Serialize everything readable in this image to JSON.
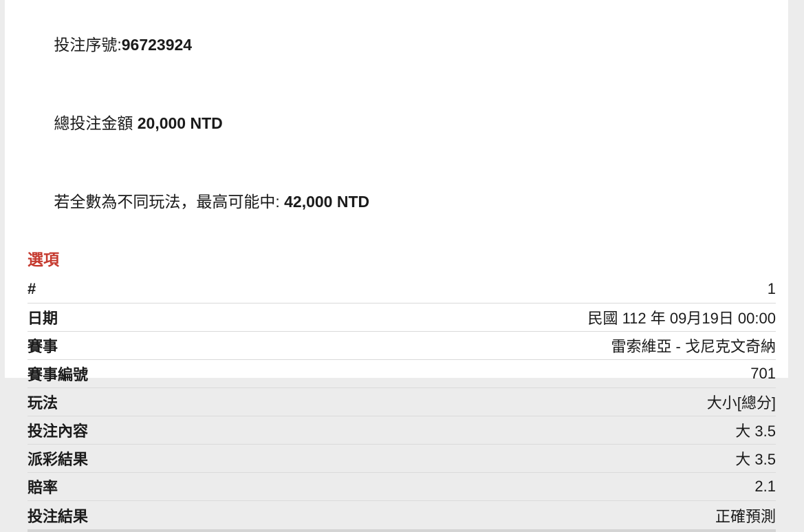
{
  "page": {
    "background_color": "#ececec",
    "panel_color": "#ffffff",
    "accent_red": "#c53a2f",
    "divider_color": "#dadada",
    "bottom_bar_color": "#d4d4d4"
  },
  "header": {
    "serial": {
      "label": "投注序號:",
      "value": "96723924"
    },
    "total_stake": {
      "label": "總投注金額 ",
      "value": "20,000 NTD"
    },
    "max_win": {
      "label": "若全數為不同玩法，最高可能中: ",
      "value": "42,000 NTD"
    }
  },
  "section": {
    "title": "選項"
  },
  "table": {
    "rows": [
      {
        "label": "#",
        "value": "1"
      },
      {
        "label": "日期",
        "value": "民國 112 年 09月19日 00:00"
      },
      {
        "label": "賽事",
        "value": "雷索維亞 - 戈尼克文奇納"
      },
      {
        "label": "賽事編號",
        "value": "701"
      },
      {
        "label": "玩法",
        "value": "大小[總分]"
      },
      {
        "label": "投注內容",
        "value": "大 3.5"
      },
      {
        "label": "派彩結果",
        "value": "大 3.5"
      },
      {
        "label": "賠率",
        "value": "2.1"
      },
      {
        "label": "投注結果",
        "value": "正確預測"
      }
    ]
  }
}
